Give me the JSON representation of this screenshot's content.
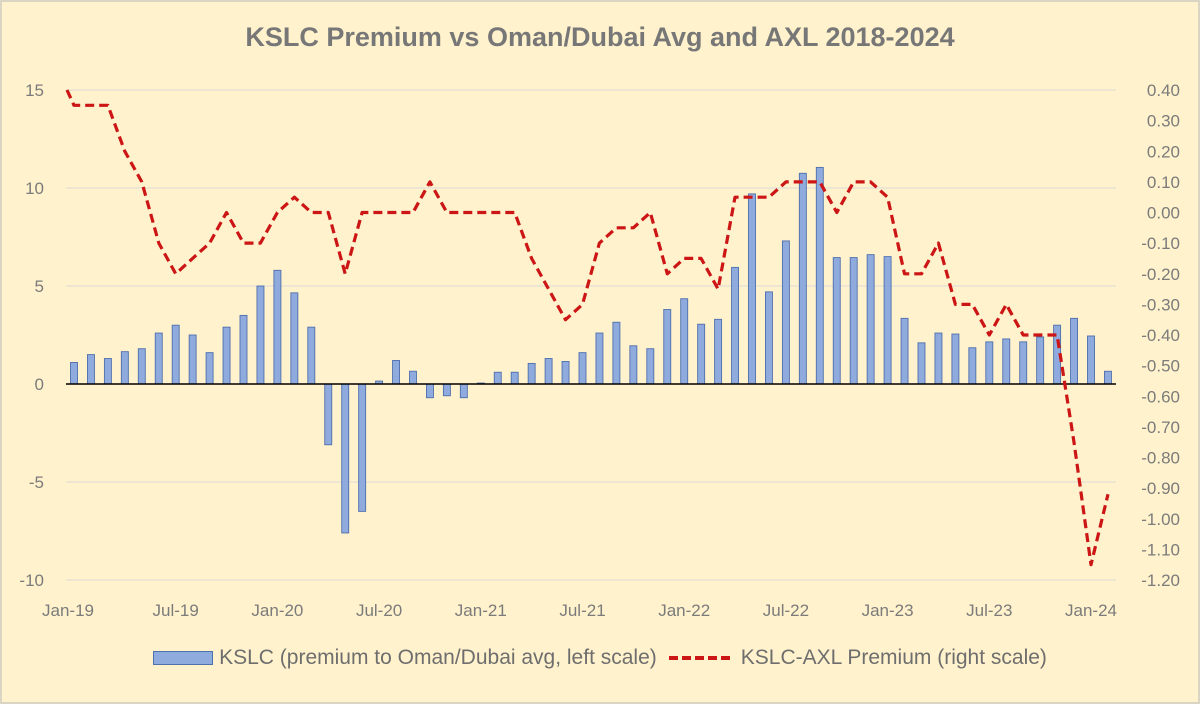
{
  "chart_data": {
    "type": "bar",
    "title": "KSLC Premium vs Oman/Dubai Avg and AXL 2018-2024",
    "xlabel": "",
    "ylabel": "",
    "x_tick_labels": [
      "Jan-19",
      "Jul-19",
      "Jan-20",
      "Jul-20",
      "Jan-21",
      "Jul-21",
      "Jan-22",
      "Jul-22",
      "Jan-23",
      "Jul-23",
      "Jan-24"
    ],
    "left_axis": {
      "range": [
        -10,
        15
      ],
      "ticks": [
        "15",
        "10",
        "5",
        "0",
        "-5",
        "-10"
      ],
      "gridlines": true
    },
    "right_axis": {
      "range": [
        -1.2,
        0.4
      ],
      "ticks": [
        "0.40",
        "0.30",
        "0.20",
        "0.10",
        "0.00",
        "-0.10",
        "-0.20",
        "-0.30",
        "-0.40",
        "-0.50",
        "-0.60",
        "-0.70",
        "-0.80",
        "-0.90",
        "-1.00",
        "-1.10",
        "-1.20"
      ]
    },
    "legend_position": "bottom",
    "categories": [
      "Jan-19",
      "Feb-19",
      "Mar-19",
      "Apr-19",
      "May-19",
      "Jun-19",
      "Jul-19",
      "Aug-19",
      "Sep-19",
      "Oct-19",
      "Nov-19",
      "Dec-19",
      "Jan-20",
      "Feb-20",
      "Mar-20",
      "Apr-20",
      "May-20",
      "Jun-20",
      "Jul-20",
      "Aug-20",
      "Sep-20",
      "Oct-20",
      "Nov-20",
      "Dec-20",
      "Jan-21",
      "Feb-21",
      "Mar-21",
      "Apr-21",
      "May-21",
      "Jun-21",
      "Jul-21",
      "Aug-21",
      "Sep-21",
      "Oct-21",
      "Nov-21",
      "Dec-21",
      "Jan-22",
      "Feb-22",
      "Mar-22",
      "Apr-22",
      "May-22",
      "Jun-22",
      "Jul-22",
      "Aug-22",
      "Sep-22",
      "Oct-22",
      "Nov-22",
      "Dec-22",
      "Jan-23",
      "Feb-23",
      "Mar-23",
      "Apr-23",
      "May-23",
      "Jun-23",
      "Jul-23",
      "Aug-23",
      "Sep-23",
      "Oct-23",
      "Nov-23",
      "Dec-23",
      "Jan-24",
      "Feb-24"
    ],
    "series": [
      {
        "name": "KSLC (premium to Oman/Dubai avg, left scale)",
        "type": "bar",
        "axis": "left",
        "color": "#8faadc",
        "values": [
          1.1,
          1.5,
          1.3,
          1.65,
          1.8,
          2.6,
          3.0,
          2.5,
          1.6,
          2.9,
          3.5,
          5.0,
          5.8,
          4.65,
          2.9,
          -3.1,
          -7.6,
          -6.5,
          0.15,
          1.2,
          0.65,
          -0.7,
          -0.6,
          -0.7,
          0.05,
          0.6,
          0.6,
          1.05,
          1.3,
          1.15,
          1.6,
          2.6,
          3.15,
          1.95,
          1.8,
          3.8,
          4.35,
          3.05,
          3.3,
          5.95,
          9.7,
          4.7,
          7.3,
          10.75,
          11.05,
          6.45,
          6.45,
          6.6,
          6.5,
          3.35,
          2.1,
          2.6,
          2.55,
          1.85,
          2.15,
          2.3,
          2.15,
          2.4,
          3.0,
          3.35,
          2.45,
          0.65
        ]
      },
      {
        "name": "KSLC-AXL Premium (right scale)",
        "type": "line",
        "axis": "right",
        "style": "dashed",
        "color": "#cc1515",
        "start_value": 0.4,
        "values": [
          0.35,
          0.35,
          0.35,
          0.2,
          0.1,
          -0.1,
          -0.2,
          -0.15,
          -0.1,
          0.0,
          -0.1,
          -0.1,
          0.0,
          0.05,
          0.0,
          0.0,
          -0.2,
          0.0,
          0.0,
          0.0,
          0.0,
          0.1,
          0.0,
          0.0,
          0.0,
          0.0,
          0.0,
          -0.15,
          -0.25,
          -0.35,
          -0.3,
          -0.1,
          -0.05,
          -0.05,
          0.0,
          -0.2,
          -0.15,
          -0.15,
          -0.25,
          0.05,
          0.05,
          0.05,
          0.1,
          0.1,
          0.1,
          0.0,
          0.1,
          0.1,
          0.05,
          -0.2,
          -0.2,
          -0.1,
          -0.3,
          -0.3,
          -0.4,
          -0.3,
          -0.4,
          -0.4,
          -0.4,
          -0.75,
          -1.15,
          -0.92
        ]
      }
    ]
  },
  "legend": {
    "bar_label": "KSLC (premium to Oman/Dubai avg, left scale)",
    "line_label": "KSLC-AXL Premium (right scale)"
  }
}
